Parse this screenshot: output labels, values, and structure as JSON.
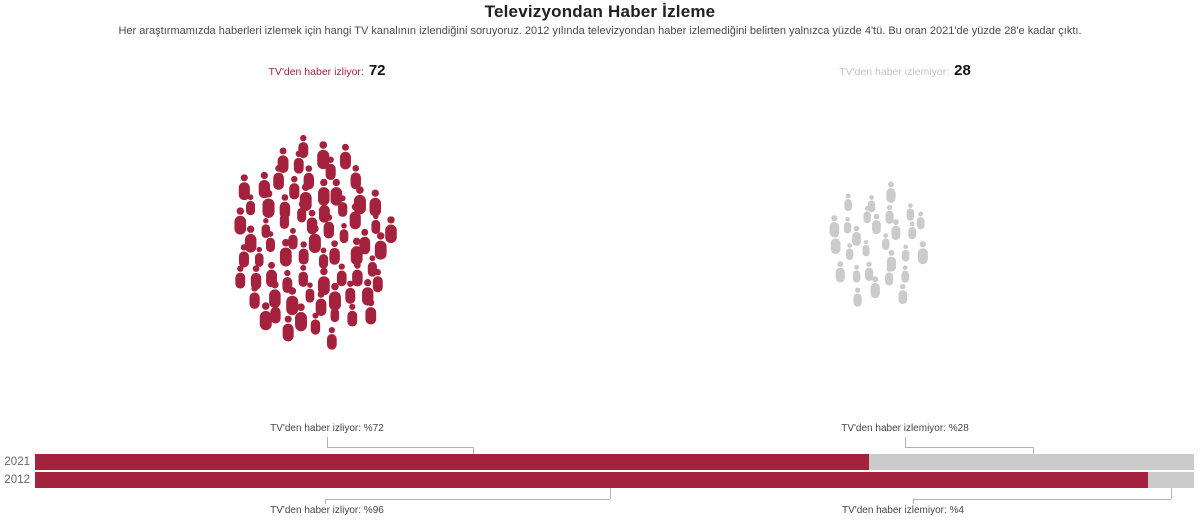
{
  "title": "Televizyondan Haber İzleme",
  "subtitle": "Her araştırmamızda haberleri izlemek için hangi TV kanalının izlendiğini soruyoruz. 2012 yılında televizyondan haber izlemediğini belirten yalnızca yüzde 4'tü. Bu oran 2021'de yüzde 28'e kadar çıktı.",
  "colors": {
    "watching": "#A4223E",
    "not_watching": "#cbcbcb",
    "not_watching_label": "#c4c4c4",
    "value_text": "#111111"
  },
  "pictogram": {
    "left": {
      "label": "TV'den haber izliyor:",
      "value": "72",
      "count": 72
    },
    "right": {
      "label": "TV'den haber izlemiyor:",
      "value": "28",
      "count": 28
    }
  },
  "bars": {
    "years": [
      "2021",
      "2012"
    ],
    "annotations": {
      "top_left": "TV'den haber izliyor: %72",
      "top_right": "TV'den haber izlemiyor: %28",
      "bottom_left": "TV'den haber izliyor: %96",
      "bottom_right": "TV'den haber izlemiyor: %4"
    }
  },
  "chart_data": [
    {
      "type": "pictogram",
      "title": "Televizyondan Haber İzleme (2021)",
      "categories": [
        "TV'den haber izliyor",
        "TV'den haber izlemiyor"
      ],
      "values": [
        72,
        28
      ],
      "unit": "percent",
      "colors": [
        "#A4223E",
        "#cbcbcb"
      ]
    },
    {
      "type": "bar",
      "subtype": "horizontal-stacked",
      "categories": [
        "2021",
        "2012"
      ],
      "series": [
        {
          "name": "TV'den haber izliyor",
          "values": [
            72,
            96
          ],
          "color": "#A4223E"
        },
        {
          "name": "TV'den haber izlemiyor",
          "values": [
            28,
            4
          ],
          "color": "#cbcbcb"
        }
      ],
      "xlim": [
        0,
        100
      ],
      "grid": false,
      "legend_position": "none",
      "annotations": [
        "TV'den haber izliyor: %72",
        "TV'den haber izlemiyor: %28",
        "TV'den haber izliyor: %96",
        "TV'den haber izlemiyor: %4"
      ]
    }
  ]
}
